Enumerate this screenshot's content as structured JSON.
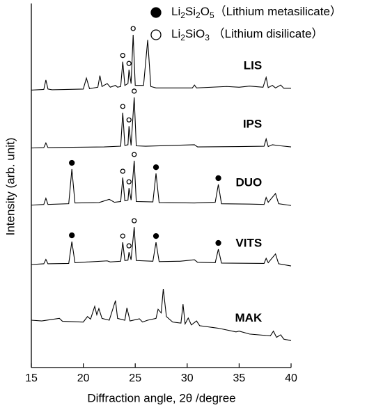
{
  "chart_data": {
    "type": "line",
    "xlabel": "Diffraction angle, 2θ /degree",
    "ylabel": "Intensity (arb. unit)",
    "xlim": [
      15,
      40
    ],
    "xticks": [
      15,
      20,
      25,
      30,
      35,
      40
    ],
    "ylim": [
      0,
      100
    ],
    "legend": [
      {
        "symbol": "filled",
        "text": [
          "Li",
          "2",
          "Si",
          "2",
          "O",
          "5",
          "（Lithium metasilicate）"
        ]
      },
      {
        "symbol": "open",
        "text": [
          "Li",
          "2",
          "SiO",
          "3",
          " （Lithium disilicate）"
        ]
      }
    ],
    "series": [
      {
        "name": "LIS",
        "color": "#000000",
        "x": [
          15,
          16.2,
          16.4,
          16.6,
          17,
          20,
          20.3,
          20.6,
          21.4,
          21.6,
          21.8,
          22.3,
          22.6,
          23.1,
          23.3,
          23.6,
          23.8,
          24,
          24.3,
          24.4,
          24.6,
          24.8,
          25,
          25.8,
          26.2,
          26.5,
          27,
          30.5,
          30.7,
          30.9,
          33.8,
          35,
          36,
          37.3,
          37.6,
          37.8,
          38.2,
          38.5,
          39,
          39.3,
          40
        ],
        "values": [
          76.2,
          76.4,
          79,
          76.5,
          76.3,
          76.5,
          79.5,
          76.6,
          77,
          80.2,
          77.2,
          78,
          77,
          77.5,
          77,
          77.2,
          84,
          77.5,
          78,
          81.8,
          78,
          91.4,
          77.5,
          77.5,
          90,
          77.2,
          76.8,
          76.8,
          77.6,
          76.8,
          77.2,
          77,
          77.3,
          77,
          79.7,
          76.9,
          77.5,
          76.8,
          77.6,
          76.7,
          76.7
        ],
        "markers": [
          {
            "x": 23.8,
            "symbol": "open"
          },
          {
            "x": 24.4,
            "symbol": "open"
          },
          {
            "x": 24.8,
            "symbol": "open"
          }
        ]
      },
      {
        "name": "IPS",
        "color": "#000000",
        "x": [
          15,
          16.2,
          16.4,
          16.6,
          19,
          22,
          23.6,
          23.8,
          24,
          24.3,
          24.4,
          24.6,
          24.9,
          25.1,
          26,
          30.7,
          31,
          35,
          37.4,
          37.6,
          37.8,
          38.2,
          39,
          40
        ],
        "values": [
          60.3,
          60.4,
          61.7,
          60.4,
          60.5,
          60.6,
          60.8,
          70,
          61,
          61.2,
          66.3,
          61,
          74.2,
          60.9,
          60.8,
          61.2,
          60.6,
          60.7,
          60.8,
          62.8,
          60.7,
          61.2,
          60.9,
          60.6
        ],
        "markers": [
          {
            "x": 23.8,
            "symbol": "open"
          },
          {
            "x": 24.4,
            "symbol": "open"
          },
          {
            "x": 24.9,
            "symbol": "open"
          }
        ]
      },
      {
        "name": "DUO",
        "color": "#000000",
        "x": [
          15,
          16.2,
          16.4,
          16.6,
          18.6,
          18.9,
          19.2,
          21.5,
          22.5,
          23,
          23.6,
          23.8,
          24,
          24.3,
          24.4,
          24.6,
          24.9,
          25.1,
          26.7,
          27,
          27.3,
          30.7,
          32.7,
          33,
          33.3,
          36,
          37.4,
          37.6,
          37.8,
          38.5,
          38.8,
          40
        ],
        "values": [
          44.6,
          44.8,
          46.5,
          44.8,
          45,
          54.5,
          45.2,
          45.3,
          46.2,
          45.4,
          45.6,
          52.2,
          45.8,
          46,
          49.3,
          46,
          56.8,
          45.6,
          45.5,
          53.3,
          45.3,
          45.2,
          45.4,
          50.3,
          45,
          44.9,
          44.8,
          46.7,
          45.4,
          47.8,
          45,
          44.5
        ],
        "markers": [
          {
            "x": 18.9,
            "symbol": "filled"
          },
          {
            "x": 23.8,
            "symbol": "open"
          },
          {
            "x": 24.4,
            "symbol": "open"
          },
          {
            "x": 24.9,
            "symbol": "open"
          },
          {
            "x": 27,
            "symbol": "filled"
          },
          {
            "x": 33,
            "symbol": "filled"
          }
        ]
      },
      {
        "name": "VITS",
        "color": "#000000",
        "x": [
          15,
          16.2,
          16.4,
          16.6,
          18.6,
          18.9,
          19.2,
          22.3,
          22.6,
          23.6,
          23.8,
          24,
          24.3,
          24.4,
          24.6,
          24.9,
          25.1,
          26.7,
          27,
          27.3,
          29.3,
          30.7,
          31,
          32.7,
          33,
          33.3,
          37.4,
          37.6,
          37.8,
          38.5,
          38.8,
          40
        ],
        "values": [
          28.3,
          28.5,
          29.7,
          28.5,
          28.6,
          34.6,
          28.8,
          29.3,
          29,
          29.2,
          34.4,
          29.4,
          29.5,
          31.7,
          29.6,
          38.6,
          29.4,
          29.2,
          34.4,
          29.1,
          29.2,
          29.6,
          28.9,
          28.8,
          32.5,
          28.7,
          28.6,
          30,
          28.8,
          31.2,
          28.5,
          27.9
        ],
        "markers": [
          {
            "x": 18.9,
            "symbol": "filled"
          },
          {
            "x": 23.8,
            "symbol": "open"
          },
          {
            "x": 24.4,
            "symbol": "open"
          },
          {
            "x": 24.9,
            "symbol": "open"
          },
          {
            "x": 27,
            "symbol": "filled"
          },
          {
            "x": 33,
            "symbol": "filled"
          }
        ]
      },
      {
        "name": "MAK",
        "color": "#000000",
        "x": [
          15,
          16,
          17.7,
          18,
          20,
          20.4,
          20.7,
          21.1,
          21.3,
          21.5,
          21.8,
          22.5,
          23.1,
          23.3,
          24,
          24.2,
          24.5,
          25.4,
          25.7,
          26.2,
          27,
          27.2,
          27.5,
          27.7,
          28,
          28.6,
          29.4,
          29.6,
          29.8,
          30.1,
          30.4,
          30.9,
          31.2,
          33,
          34.7,
          35,
          36,
          38,
          38.3,
          38.6,
          39,
          39.3,
          40
        ],
        "values": [
          13,
          12.8,
          13.5,
          12.7,
          12.5,
          14,
          13.3,
          16.8,
          14.5,
          16.2,
          13.5,
          13,
          18.4,
          13.5,
          13,
          16.4,
          12.8,
          13.4,
          12.5,
          13,
          13.5,
          16,
          15,
          21.6,
          14,
          12.5,
          12.2,
          17.4,
          12,
          13.6,
          11.7,
          12.8,
          11.5,
          10.8,
          9.8,
          10,
          9.2,
          8.7,
          10,
          8.3,
          9,
          7.8,
          7.4
        ],
        "markers": []
      }
    ]
  }
}
